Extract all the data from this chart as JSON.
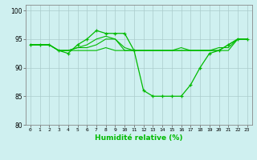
{
  "title": "",
  "xlabel": "Humidité relative (%)",
  "ylabel": "",
  "xlim": [
    -0.5,
    23.5
  ],
  "ylim": [
    80,
    101
  ],
  "yticks": [
    80,
    85,
    90,
    95,
    100
  ],
  "xticks": [
    0,
    1,
    2,
    3,
    4,
    5,
    6,
    7,
    8,
    9,
    10,
    11,
    12,
    13,
    14,
    15,
    16,
    17,
    18,
    19,
    20,
    21,
    22,
    23
  ],
  "bg_color": "#cff0f0",
  "grid_color": "#aacccc",
  "line_color": "#00bb00",
  "lines": [
    [
      94,
      94,
      94,
      93,
      92.5,
      94,
      95,
      96.5,
      96,
      96,
      96,
      93,
      86,
      85,
      85,
      85,
      85,
      87,
      90,
      92.5,
      93,
      94,
      95,
      95
    ],
    [
      94,
      94,
      94,
      93,
      93,
      93.5,
      94,
      95,
      95.5,
      95,
      93,
      93,
      93,
      93,
      93,
      93,
      93,
      93,
      93,
      93,
      93,
      94,
      95,
      95
    ],
    [
      94,
      94,
      94,
      93,
      93,
      93,
      93,
      93,
      93.5,
      93,
      93,
      93,
      93,
      93,
      93,
      93,
      93,
      93,
      93,
      93,
      93,
      93,
      95,
      95
    ],
    [
      94,
      94,
      94,
      93,
      93,
      93.5,
      93.5,
      94,
      95,
      95,
      93.5,
      93,
      93,
      93,
      93,
      93,
      93.5,
      93,
      93,
      93,
      93.5,
      93.5,
      95,
      95
    ]
  ]
}
